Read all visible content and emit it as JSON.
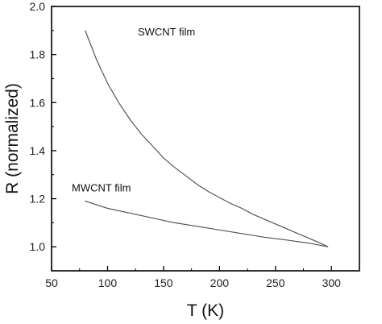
{
  "chart_data": {
    "type": "line",
    "xlabel": "T (K)",
    "ylabel": "R (normalized)",
    "xlim": [
      50,
      325
    ],
    "ylim": [
      0.9,
      2.0
    ],
    "xticks": [
      "50",
      "100",
      "150",
      "200",
      "250",
      "300"
    ],
    "yticks": [
      "1.0",
      "1.2",
      "1.4",
      "1.6",
      "1.8",
      "2.0"
    ],
    "grid": false,
    "legend": "none",
    "series": [
      {
        "name": "SWCNT film",
        "color": "#555555",
        "points": [
          {
            "x": 80,
            "y": 1.9
          },
          {
            "x": 90,
            "y": 1.78
          },
          {
            "x": 100,
            "y": 1.68
          },
          {
            "x": 110,
            "y": 1.6
          },
          {
            "x": 120,
            "y": 1.53
          },
          {
            "x": 130,
            "y": 1.47
          },
          {
            "x": 140,
            "y": 1.42
          },
          {
            "x": 150,
            "y": 1.37
          },
          {
            "x": 160,
            "y": 1.33
          },
          {
            "x": 170,
            "y": 1.295
          },
          {
            "x": 180,
            "y": 1.26
          },
          {
            "x": 190,
            "y": 1.23
          },
          {
            "x": 200,
            "y": 1.205
          },
          {
            "x": 210,
            "y": 1.18
          },
          {
            "x": 220,
            "y": 1.16
          },
          {
            "x": 230,
            "y": 1.135
          },
          {
            "x": 240,
            "y": 1.115
          },
          {
            "x": 250,
            "y": 1.095
          },
          {
            "x": 260,
            "y": 1.075
          },
          {
            "x": 270,
            "y": 1.055
          },
          {
            "x": 280,
            "y": 1.035
          },
          {
            "x": 290,
            "y": 1.015
          },
          {
            "x": 297,
            "y": 1.0
          }
        ]
      },
      {
        "name": "MWCNT film",
        "color": "#555555",
        "points": [
          {
            "x": 80,
            "y": 1.19
          },
          {
            "x": 100,
            "y": 1.16
          },
          {
            "x": 120,
            "y": 1.14
          },
          {
            "x": 140,
            "y": 1.12
          },
          {
            "x": 160,
            "y": 1.1
          },
          {
            "x": 180,
            "y": 1.085
          },
          {
            "x": 200,
            "y": 1.07
          },
          {
            "x": 220,
            "y": 1.055
          },
          {
            "x": 240,
            "y": 1.04
          },
          {
            "x": 260,
            "y": 1.028
          },
          {
            "x": 280,
            "y": 1.015
          },
          {
            "x": 297,
            "y": 1.0
          }
        ]
      }
    ],
    "annotations": [
      {
        "text": "SWCNT film",
        "x": 127,
        "y": 1.88
      },
      {
        "text": "MWCNT film",
        "x": 68,
        "y": 1.23
      }
    ]
  }
}
